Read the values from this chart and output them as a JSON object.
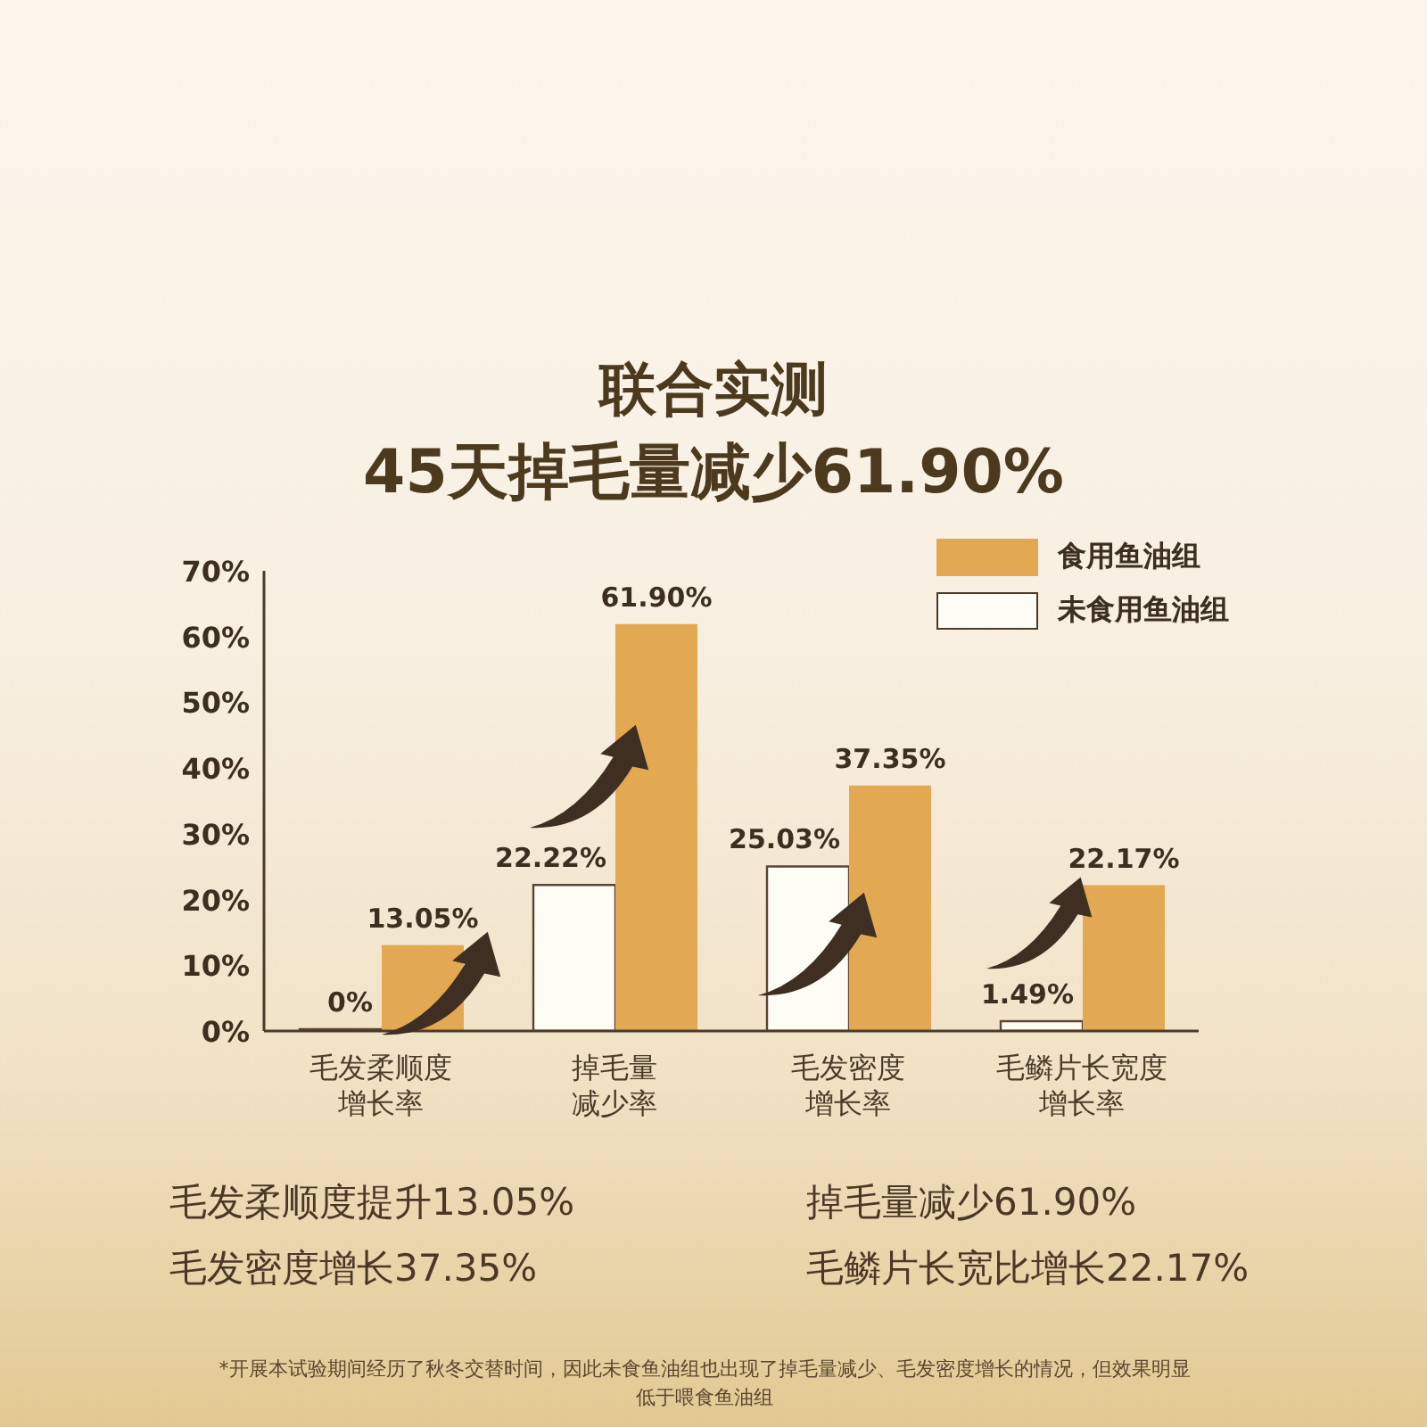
{
  "chart_data": {
    "type": "bar",
    "title": "联合实测",
    "subtitle": "45天掉毛量减少61.90%",
    "categories": [
      "毛发柔顺度增长率",
      "掉毛量减少率",
      "毛发密度增长率",
      "毛鳞片长宽度增长率"
    ],
    "series": [
      {
        "name": "食用鱼油组",
        "color": "#e2a852",
        "values": [
          13.05,
          61.9,
          37.35,
          22.17
        ],
        "value_labels": [
          "13.05%",
          "61.90%",
          "37.35%",
          "22.17%"
        ]
      },
      {
        "name": "未食用鱼油组",
        "color": "#fffcf6",
        "values": [
          0,
          22.22,
          25.03,
          1.49
        ],
        "value_labels": [
          "0%",
          "22.22%",
          "25.03%",
          "1.49%"
        ]
      }
    ],
    "ylim": [
      0,
      70
    ],
    "yticks": [
      {
        "value": 0,
        "label": "0%"
      },
      {
        "value": 10,
        "label": "10%"
      },
      {
        "value": 20,
        "label": "20%"
      },
      {
        "value": 30,
        "label": "30%"
      },
      {
        "value": 40,
        "label": "40%"
      },
      {
        "value": 50,
        "label": "50%"
      },
      {
        "value": 60,
        "label": "60%"
      },
      {
        "value": 70,
        "label": "70%"
      }
    ],
    "legend": "top right",
    "annotations": [
      "毛发柔顺度提升13.05%",
      "掉毛量减少61.90%",
      "毛发密度增长37.35%",
      "毛鳞片长宽比增长22.17%",
      "*开展本试验期间经历了秋冬交替时间，因此未食鱼油组也出现了掉毛量减少、毛发密度增长的情况，但效果明显低于喂食鱼油组"
    ]
  }
}
